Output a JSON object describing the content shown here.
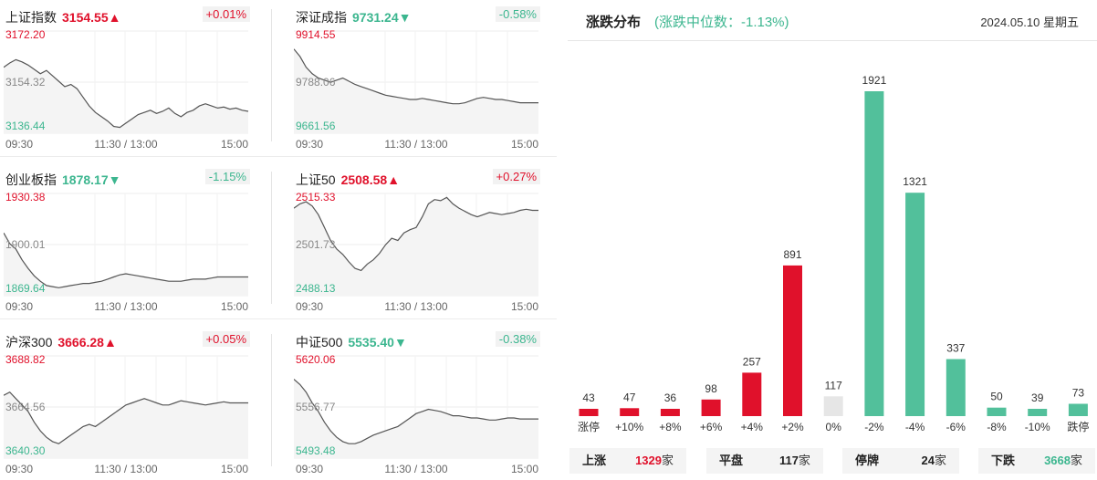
{
  "indices": [
    {
      "name": "上证指数",
      "value": "3154.55",
      "arrow": "▲",
      "change": "+0.01%",
      "dir": "up",
      "ymax": "3172.20",
      "ymid": "3154.32",
      "ymin": "3136.44",
      "t0": "09:30",
      "tmid": "11:30 / 13:00",
      "tend": "15:00",
      "line": [
        58,
        62,
        65,
        63,
        60,
        56,
        52,
        55,
        50,
        45,
        40,
        42,
        38,
        30,
        22,
        16,
        12,
        8,
        3,
        2,
        6,
        10,
        14,
        16,
        18,
        15,
        17,
        20,
        15,
        12,
        16,
        18,
        22,
        24,
        22,
        20,
        21,
        19,
        20,
        18,
        17
      ]
    },
    {
      "name": "深证成指",
      "value": "9731.24",
      "arrow": "▼",
      "change": "-0.58%",
      "dir": "down",
      "ymax": "9914.55",
      "ymid": "9788.06",
      "ymin": "9661.56",
      "t0": "09:30",
      "tmid": "11:30 / 13:00",
      "tend": "15:00",
      "line": [
        75,
        68,
        58,
        52,
        48,
        46,
        44,
        46,
        48,
        45,
        42,
        40,
        38,
        36,
        34,
        32,
        31,
        30,
        29,
        28,
        28,
        29,
        28,
        27,
        26,
        25,
        24,
        24,
        25,
        27,
        29,
        30,
        29,
        28,
        28,
        27,
        26,
        25,
        25,
        25,
        25
      ]
    },
    {
      "name": "创业板指",
      "value": "1878.17",
      "arrow": "▼",
      "change": "-1.15%",
      "dir": "down",
      "ymax": "1930.38",
      "ymid": "1900.01",
      "ymin": "1869.64",
      "t0": "09:30",
      "tmid": "11:30 / 13:00",
      "tend": "15:00",
      "line": [
        55,
        45,
        40,
        30,
        22,
        15,
        10,
        6,
        5,
        4,
        5,
        6,
        7,
        8,
        8,
        9,
        10,
        12,
        14,
        16,
        17,
        16,
        15,
        14,
        13,
        12,
        11,
        10,
        10,
        10,
        11,
        12,
        12,
        12,
        13,
        14,
        14,
        14,
        14,
        14,
        14
      ]
    },
    {
      "name": "上证50",
      "value": "2508.58",
      "arrow": "▲",
      "change": "+0.27%",
      "dir": "up",
      "ymax": "2515.33",
      "ymid": "2501.73",
      "ymin": "2488.13",
      "t0": "09:30",
      "tmid": "11:30 / 13:00",
      "tend": "15:00",
      "line": [
        78,
        82,
        84,
        80,
        72,
        60,
        48,
        40,
        35,
        28,
        22,
        20,
        26,
        30,
        36,
        44,
        50,
        48,
        55,
        58,
        60,
        70,
        82,
        86,
        85,
        88,
        82,
        78,
        75,
        72,
        70,
        72,
        74,
        73,
        72,
        73,
        74,
        76,
        77,
        76,
        76
      ]
    },
    {
      "name": "沪深300",
      "value": "3666.28",
      "arrow": "▲",
      "change": "+0.05%",
      "dir": "up",
      "ymax": "3688.82",
      "ymid": "3664.56",
      "ymin": "3640.30",
      "t0": "09:30",
      "tmid": "11:30 / 13:00",
      "tend": "15:00",
      "line": [
        55,
        58,
        52,
        46,
        40,
        30,
        22,
        16,
        12,
        10,
        14,
        18,
        22,
        26,
        28,
        26,
        30,
        34,
        38,
        42,
        46,
        48,
        50,
        52,
        50,
        48,
        46,
        46,
        48,
        50,
        49,
        48,
        47,
        46,
        47,
        48,
        49,
        48,
        48,
        48,
        48
      ]
    },
    {
      "name": "中证500",
      "value": "5535.40",
      "arrow": "▼",
      "change": "-0.38%",
      "dir": "down",
      "ymax": "5620.06",
      "ymid": "5556.77",
      "ymin": "5493.48",
      "t0": "09:30",
      "tmid": "11:30 / 13:00",
      "tend": "15:00",
      "line": [
        70,
        65,
        58,
        48,
        40,
        30,
        22,
        16,
        12,
        10,
        10,
        12,
        15,
        18,
        20,
        22,
        24,
        26,
        30,
        34,
        38,
        40,
        42,
        41,
        40,
        38,
        36,
        36,
        35,
        34,
        34,
        33,
        32,
        32,
        33,
        34,
        34,
        33,
        33,
        33,
        33
      ]
    }
  ],
  "distribution": {
    "title": "涨跌分布",
    "subtitle": "(涨跌中位数：-1.13%)",
    "date": "2024.05.10 星期五",
    "summary": {
      "up_label": "上涨",
      "up_value": "1329",
      "up_unit": "家",
      "flat_label": "平盘",
      "flat_value": "117",
      "flat_unit": "家",
      "halt_label": "停牌",
      "halt_value": "24",
      "halt_unit": "家",
      "down_label": "下跌",
      "down_value": "3668",
      "down_unit": "家"
    }
  },
  "chart_data": {
    "type": "bar",
    "categories": [
      "涨停",
      "+10%",
      "+8%",
      "+6%",
      "+4%",
      "+2%",
      "0%",
      "-2%",
      "-4%",
      "-6%",
      "-8%",
      "-10%",
      "跌停"
    ],
    "values": [
      43,
      47,
      36,
      98,
      257,
      891,
      117,
      1921,
      1321,
      337,
      50,
      39,
      73
    ],
    "colors": [
      "#e0112b",
      "#e0112b",
      "#e0112b",
      "#e0112b",
      "#e0112b",
      "#e0112b",
      "#e6e6e6",
      "#52c09b",
      "#52c09b",
      "#52c09b",
      "#52c09b",
      "#52c09b",
      "#52c09b"
    ],
    "ylim": [
      0,
      1921
    ]
  },
  "colors": {
    "up": "#e0112b",
    "down": "#3cb68f",
    "flat": "#e6e6e6"
  }
}
